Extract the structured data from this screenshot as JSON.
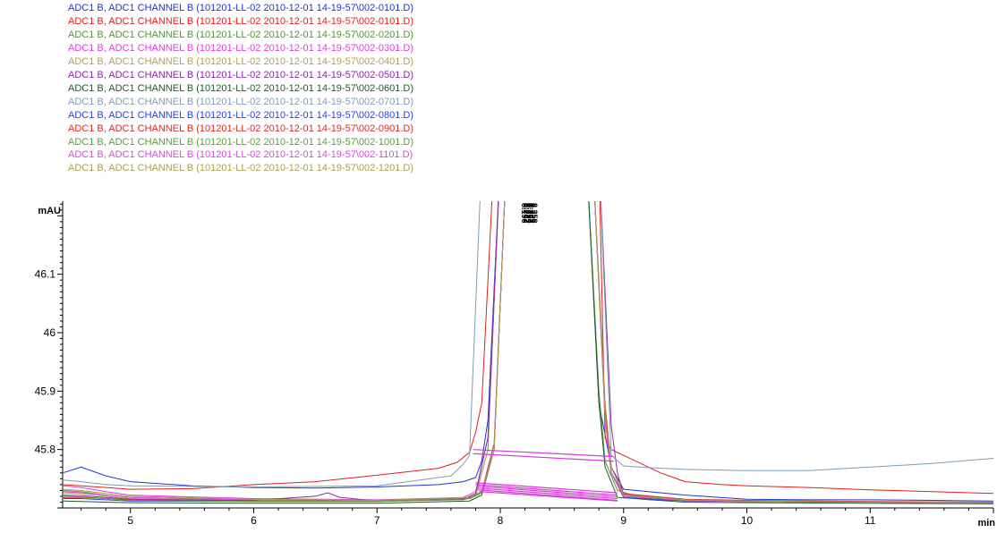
{
  "chart_data": {
    "type": "line",
    "title": "",
    "xlabel": "min",
    "ylabel": "mAU",
    "xlim": [
      4.45,
      12.0
    ],
    "ylim": [
      45.7,
      46.225
    ],
    "x_ticks": [
      5,
      6,
      7,
      8,
      9,
      10,
      11
    ],
    "y_ticks": [
      {
        "value": 46.1,
        "label": "46.1"
      },
      {
        "value": 46.0,
        "label": "46"
      },
      {
        "value": 45.9,
        "label": "45.9"
      },
      {
        "value": 45.8,
        "label": "45.8"
      }
    ],
    "grid": false,
    "legend_position": "top-left",
    "peak_labels": [
      "8.196",
      "8.203",
      "8.227",
      "8.274",
      "8.303",
      "8.329",
      "8.358"
    ],
    "series": [
      {
        "name": "ADC1 B, ADC1 CHANNEL B (101201-LL-02 2010-12-01 14-19-57\\002-0101.D)",
        "color": "#1f35d6",
        "x": [
          4.45,
          4.6,
          4.8,
          5.0,
          5.5,
          6.0,
          6.5,
          7.0,
          7.5,
          7.7,
          7.8,
          7.85,
          7.9,
          8.0,
          8.7,
          8.8,
          8.9,
          9.0,
          9.5,
          10.0,
          10.5,
          11.0,
          11.5,
          12.0
        ],
        "y": [
          45.76,
          45.77,
          45.755,
          45.745,
          45.738,
          45.735,
          45.734,
          45.736,
          45.74,
          45.745,
          45.752,
          45.78,
          45.85,
          46.3,
          46.3,
          45.88,
          45.77,
          45.732,
          45.722,
          45.715,
          45.714,
          45.714,
          45.713,
          45.712
        ]
      },
      {
        "name": "ADC1 B, ADC1 CHANNEL B (101201-LL-02 2010-12-01 14-19-57\\002-0101.D)",
        "color": "#e01f1f",
        "x": [
          4.45,
          4.6,
          4.8,
          5.0,
          5.5,
          6.0,
          6.5,
          7.0,
          7.5,
          7.65,
          7.75,
          7.8,
          7.85,
          7.95,
          8.8,
          8.85,
          8.9,
          9.0,
          9.3,
          9.5,
          9.8,
          10.0,
          10.5,
          11.0,
          11.5,
          12.0
        ],
        "y": [
          45.74,
          45.738,
          45.735,
          45.732,
          45.733,
          45.74,
          45.745,
          45.756,
          45.768,
          45.778,
          45.795,
          45.83,
          45.88,
          46.3,
          46.3,
          45.82,
          45.8,
          45.79,
          45.76,
          45.745,
          45.74,
          45.738,
          45.735,
          45.731,
          45.728,
          45.725
        ]
      },
      {
        "name": "ADC1 B, ADC1 CHANNEL B (101201-LL-02 2010-12-01 14-19-57\\002-0201.D)",
        "color": "#4a9a2e",
        "x": [
          4.45,
          4.6,
          4.8,
          5.0,
          6.0,
          7.0,
          7.7,
          7.8,
          7.9,
          8.0,
          8.7,
          8.8,
          8.85,
          8.95,
          9.2,
          10.0,
          11.0,
          12.0
        ],
        "y": [
          45.73,
          45.728,
          45.722,
          45.718,
          45.714,
          45.712,
          45.716,
          45.722,
          45.8,
          46.3,
          46.3,
          45.9,
          45.78,
          45.73,
          45.714,
          45.711,
          45.71,
          45.709
        ]
      },
      {
        "name": "ADC1 B, ADC1 CHANNEL B (101201-LL-02 2010-12-01 14-19-57\\002-0301.D)",
        "color": "#e040e0",
        "x": [
          4.45,
          4.6,
          4.8,
          5.0,
          6.0,
          7.0,
          7.7,
          7.8,
          7.9,
          8.0,
          8.75,
          8.85,
          8.9,
          9.0,
          9.5,
          10.0,
          11.0,
          12.0
        ],
        "y": [
          45.738,
          45.735,
          45.728,
          45.722,
          45.716,
          45.714,
          45.718,
          45.728,
          45.82,
          46.3,
          46.3,
          45.86,
          45.76,
          45.725,
          45.714,
          45.712,
          45.71,
          45.709
        ]
      },
      {
        "name": "ADC1 B, ADC1 CHANNEL B (101201-LL-02 2010-12-01 14-19-57\\002-0401.D)",
        "color": "#b3a05a",
        "x": [
          4.45,
          4.6,
          4.8,
          5.0,
          6.0,
          7.0,
          7.7,
          7.8,
          7.9,
          8.0,
          8.75,
          8.85,
          8.9,
          9.0,
          9.5,
          10.0,
          11.0,
          12.0
        ],
        "y": [
          45.726,
          45.724,
          45.72,
          45.716,
          45.712,
          45.711,
          45.714,
          45.72,
          45.8,
          46.3,
          46.3,
          45.88,
          45.77,
          45.724,
          45.713,
          45.711,
          45.71,
          45.709
        ]
      },
      {
        "name": "ADC1 B, ADC1 CHANNEL B (101201-LL-02 2010-12-01 14-19-57\\002-0501.D)",
        "color": "#8a2aa8",
        "x": [
          4.45,
          4.6,
          4.8,
          5.0,
          6.0,
          6.5,
          6.6,
          6.7,
          7.0,
          7.7,
          7.8,
          7.9,
          8.0,
          8.8,
          8.9,
          8.95,
          9.0,
          9.5,
          10.0,
          11.0,
          12.0
        ],
        "y": [
          45.722,
          45.721,
          45.718,
          45.715,
          45.713,
          45.72,
          45.726,
          45.718,
          45.712,
          45.715,
          45.725,
          45.82,
          46.3,
          46.3,
          45.84,
          45.76,
          45.722,
          45.713,
          45.711,
          45.71,
          45.709
        ]
      },
      {
        "name": "ADC1 B, ADC1 CHANNEL B (101201-LL-02 2010-12-01 14-19-57\\002-0601.D)",
        "color": "#1f5a26",
        "x": [
          4.45,
          4.6,
          4.8,
          5.0,
          6.0,
          7.0,
          7.75,
          7.85,
          7.95,
          8.05,
          8.7,
          8.8,
          8.85,
          8.95,
          9.5,
          10.0,
          11.0,
          12.0
        ],
        "y": [
          45.712,
          45.711,
          45.71,
          45.709,
          45.708,
          45.708,
          45.712,
          45.722,
          45.8,
          46.3,
          46.3,
          45.88,
          45.77,
          45.718,
          45.71,
          45.709,
          45.708,
          45.707
        ]
      },
      {
        "name": "ADC1 B, ADC1 CHANNEL B (101201-LL-02 2010-12-01 14-19-57\\002-0701.D)",
        "color": "#7f9db4",
        "x": [
          4.45,
          4.6,
          4.8,
          5.0,
          6.0,
          7.0,
          7.6,
          7.7,
          7.75,
          7.85,
          8.8,
          8.9,
          9.0,
          9.2,
          9.5,
          10.0,
          10.5,
          11.0,
          11.5,
          12.0
        ],
        "y": [
          45.748,
          45.745,
          45.74,
          45.738,
          45.736,
          45.738,
          45.755,
          45.775,
          45.79,
          46.3,
          46.3,
          45.79,
          45.772,
          45.769,
          45.766,
          45.764,
          45.764,
          45.77,
          45.776,
          45.785
        ]
      },
      {
        "name": "ADC1 B, ADC1 CHANNEL B (101201-LL-02 2010-12-01 14-19-57\\002-0801.D)",
        "color": "#2a3ee8",
        "x": [
          4.45,
          4.6,
          4.8,
          5.0,
          6.0,
          7.0,
          7.75,
          7.85,
          7.95,
          8.05,
          8.75,
          8.85,
          8.9,
          9.0,
          9.5,
          10.0,
          11.0,
          12.0
        ],
        "y": [
          45.716,
          45.716,
          45.714,
          45.712,
          45.711,
          45.711,
          45.716,
          45.726,
          45.8,
          46.3,
          46.3,
          45.86,
          45.76,
          45.718,
          45.712,
          45.711,
          45.71,
          45.709
        ]
      },
      {
        "name": "ADC1 B, ADC1 CHANNEL B (101201-LL-02 2010-12-01 14-19-57\\002-0901.D)",
        "color": "#d82a2a",
        "x": [
          4.45,
          4.6,
          4.8,
          5.0,
          6.0,
          7.0,
          7.75,
          7.85,
          7.95,
          8.05,
          8.75,
          8.85,
          8.9,
          9.0,
          9.5,
          10.0,
          11.0,
          12.0
        ],
        "y": [
          45.718,
          45.718,
          45.716,
          45.714,
          45.712,
          45.712,
          45.718,
          45.728,
          45.81,
          46.3,
          46.3,
          45.87,
          45.77,
          45.724,
          45.715,
          45.713,
          45.711,
          45.71
        ]
      },
      {
        "name": "ADC1 B, ADC1 CHANNEL B (101201-LL-02 2010-12-01 14-19-57\\002-1001.D)",
        "color": "#5f9b3a",
        "x": [
          4.45,
          4.6,
          4.8,
          5.0,
          6.0,
          7.0,
          7.75,
          7.85,
          7.95,
          8.05,
          8.75,
          8.85,
          8.9,
          9.0,
          9.5,
          10.0,
          11.0,
          12.0
        ],
        "y": [
          45.72,
          45.719,
          45.716,
          45.713,
          45.711,
          45.711,
          45.716,
          45.726,
          45.8,
          46.3,
          46.3,
          45.86,
          45.76,
          45.72,
          45.713,
          45.711,
          45.71,
          45.709
        ]
      },
      {
        "name": "ADC1 B, ADC1 CHANNEL B (101201-LL-02 2010-12-01 14-19-57\\002-1101.D)",
        "color": "#d94ad9",
        "x": [
          4.45,
          4.6,
          4.8,
          5.0,
          6.0,
          7.0,
          7.75,
          7.85,
          7.95,
          8.05,
          8.75,
          8.85,
          8.9,
          9.0,
          9.5,
          10.0,
          11.0,
          12.0
        ],
        "y": [
          45.728,
          45.726,
          45.722,
          45.718,
          45.714,
          45.713,
          45.718,
          45.728,
          45.8,
          46.3,
          46.3,
          45.85,
          45.76,
          45.72,
          45.713,
          45.711,
          45.71,
          45.709
        ]
      },
      {
        "name": "ADC1 B, ADC1 CHANNEL B (101201-LL-02 2010-12-01 14-19-57\\002-1201.D)",
        "color": "#a8a050",
        "x": [
          4.45,
          4.6,
          4.8,
          5.0,
          6.0,
          7.0,
          7.75,
          7.85,
          7.95,
          8.05,
          8.75,
          8.85,
          8.9,
          9.0,
          9.5,
          10.0,
          11.0,
          12.0
        ],
        "y": [
          45.732,
          45.73,
          45.725,
          45.72,
          45.715,
          45.713,
          45.718,
          45.728,
          45.8,
          46.3,
          46.3,
          45.86,
          45.77,
          45.722,
          45.714,
          45.712,
          45.71,
          45.709
        ]
      }
    ],
    "baselines": [
      {
        "color": "#d63ad6",
        "x": [
          7.78,
          8.92
        ],
        "y": [
          45.8,
          45.788
        ]
      },
      {
        "color": "#d63ad6",
        "x": [
          7.78,
          8.92
        ],
        "y": [
          45.793,
          45.78
        ]
      },
      {
        "color": "#d63ad6",
        "x": [
          7.8,
          8.95
        ],
        "y": [
          45.743,
          45.726
        ]
      },
      {
        "color": "#d63ad6",
        "x": [
          7.8,
          8.95
        ],
        "y": [
          45.74,
          45.722
        ]
      },
      {
        "color": "#d63ad6",
        "x": [
          7.82,
          8.95
        ],
        "y": [
          45.737,
          45.719
        ]
      },
      {
        "color": "#d63ad6",
        "x": [
          7.82,
          8.95
        ],
        "y": [
          45.734,
          45.716
        ]
      },
      {
        "color": "#d63ad6",
        "x": [
          7.82,
          8.95
        ],
        "y": [
          45.731,
          45.713
        ]
      },
      {
        "color": "#d63ad6",
        "x": [
          7.83,
          8.95
        ],
        "y": [
          45.728,
          45.712
        ]
      }
    ]
  }
}
